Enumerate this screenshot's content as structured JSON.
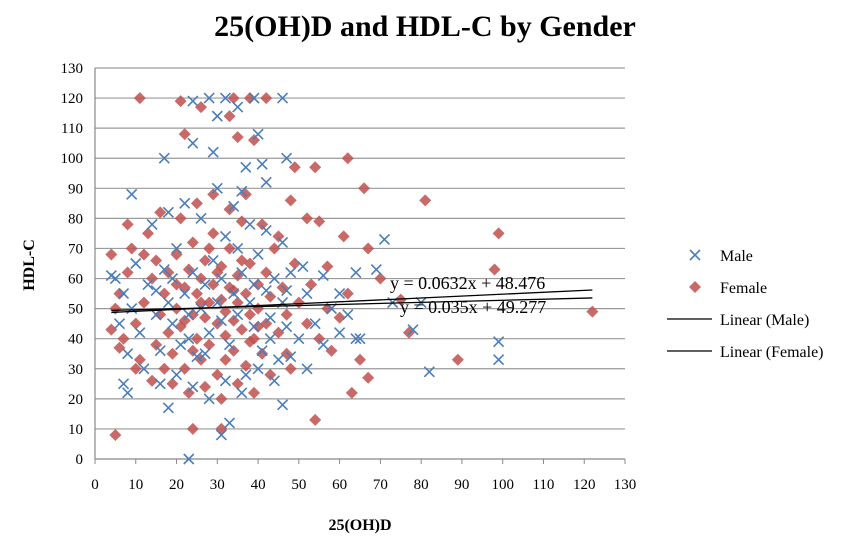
{
  "chart_data": {
    "type": "scatter",
    "title": "25(OH)D and HDL-C by Gender",
    "xlabel": "25(OH)D",
    "ylabel": "HDL-C",
    "xlim": [
      0,
      130
    ],
    "ylim": [
      0,
      130
    ],
    "xticks": [
      0,
      10,
      20,
      30,
      40,
      50,
      60,
      70,
      80,
      90,
      100,
      110,
      120,
      130
    ],
    "yticks": [
      0,
      10,
      20,
      30,
      40,
      50,
      60,
      70,
      80,
      90,
      100,
      110,
      120,
      130
    ],
    "grid": "horizontal",
    "legend_position": "right",
    "series": [
      {
        "name": "Male",
        "marker": "x",
        "color": "#4a7ebb",
        "points": [
          [
            23,
            0
          ],
          [
            24,
            119
          ],
          [
            28,
            120
          ],
          [
            30,
            114
          ],
          [
            32,
            120
          ],
          [
            35,
            117
          ],
          [
            39,
            120
          ],
          [
            46,
            120
          ],
          [
            29,
            102
          ],
          [
            24,
            105
          ],
          [
            40,
            108
          ],
          [
            17,
            100
          ],
          [
            47,
            100
          ],
          [
            41,
            98
          ],
          [
            37,
            97
          ],
          [
            9,
            88
          ],
          [
            71,
            73
          ],
          [
            82,
            29
          ],
          [
            99,
            39
          ],
          [
            99,
            33
          ],
          [
            78,
            43
          ],
          [
            73,
            52
          ],
          [
            80,
            52
          ],
          [
            56,
            61
          ],
          [
            64,
            62
          ],
          [
            4,
            61
          ],
          [
            8,
            22
          ],
          [
            18,
            17
          ],
          [
            31,
            8
          ],
          [
            33,
            12
          ],
          [
            46,
            18
          ],
          [
            52,
            30
          ],
          [
            64,
            40
          ],
          [
            60,
            55
          ],
          [
            69,
            63
          ],
          [
            36,
            89
          ],
          [
            42,
            92
          ],
          [
            9,
            50
          ],
          [
            11,
            42
          ],
          [
            13,
            58
          ],
          [
            15,
            48
          ],
          [
            16,
            36
          ],
          [
            17,
            63
          ],
          [
            18,
            52
          ],
          [
            19,
            45
          ],
          [
            20,
            70
          ],
          [
            21,
            38
          ],
          [
            22,
            55
          ],
          [
            23,
            48
          ],
          [
            24,
            62
          ],
          [
            25,
            34
          ],
          [
            26,
            50
          ],
          [
            27,
            58
          ],
          [
            28,
            42
          ],
          [
            29,
            66
          ],
          [
            30,
            52
          ],
          [
            31,
            46
          ],
          [
            32,
            74
          ],
          [
            33,
            38
          ],
          [
            34,
            55
          ],
          [
            35,
            48
          ],
          [
            36,
            62
          ],
          [
            37,
            28
          ],
          [
            38,
            52
          ],
          [
            39,
            44
          ],
          [
            40,
            68
          ],
          [
            41,
            36
          ],
          [
            42,
            56
          ],
          [
            43,
            47
          ],
          [
            44,
            60
          ],
          [
            45,
            33
          ],
          [
            46,
            52
          ],
          [
            47,
            44
          ],
          [
            48,
            62
          ],
          [
            50,
            40
          ],
          [
            52,
            55
          ],
          [
            54,
            45
          ],
          [
            56,
            38
          ],
          [
            58,
            50
          ],
          [
            60,
            42
          ],
          [
            62,
            48
          ],
          [
            65,
            40
          ],
          [
            10,
            65
          ],
          [
            12,
            30
          ],
          [
            14,
            78
          ],
          [
            16,
            25
          ],
          [
            18,
            82
          ],
          [
            20,
            28
          ],
          [
            22,
            85
          ],
          [
            24,
            24
          ],
          [
            26,
            80
          ],
          [
            28,
            20
          ],
          [
            30,
            90
          ],
          [
            32,
            26
          ],
          [
            34,
            84
          ],
          [
            36,
            22
          ],
          [
            38,
            78
          ],
          [
            40,
            30
          ],
          [
            42,
            76
          ],
          [
            44,
            26
          ],
          [
            46,
            72
          ],
          [
            48,
            34
          ],
          [
            6,
            45
          ],
          [
            7,
            55
          ],
          [
            8,
            35
          ],
          [
            5,
            60
          ],
          [
            7,
            25
          ],
          [
            15,
            56
          ],
          [
            19,
            60
          ],
          [
            23,
            40
          ],
          [
            27,
            35
          ],
          [
            31,
            60
          ],
          [
            35,
            70
          ],
          [
            39,
            58
          ],
          [
            43,
            40
          ],
          [
            47,
            56
          ],
          [
            51,
            64
          ]
        ]
      },
      {
        "name": "Female",
        "marker": "diamond",
        "color": "#c0504d",
        "points": [
          [
            11,
            120
          ],
          [
            21,
            119
          ],
          [
            26,
            117
          ],
          [
            34,
            120
          ],
          [
            38,
            120
          ],
          [
            42,
            120
          ],
          [
            33,
            114
          ],
          [
            22,
            108
          ],
          [
            39,
            106
          ],
          [
            35,
            107
          ],
          [
            62,
            100
          ],
          [
            66,
            90
          ],
          [
            81,
            86
          ],
          [
            99,
            75
          ],
          [
            98,
            63
          ],
          [
            122,
            49
          ],
          [
            89,
            33
          ],
          [
            5,
            8
          ],
          [
            54,
            13
          ],
          [
            24,
            10
          ],
          [
            31,
            10
          ],
          [
            77,
            42
          ],
          [
            75,
            53
          ],
          [
            70,
            60
          ],
          [
            61,
            74
          ],
          [
            55,
            79
          ],
          [
            52,
            80
          ],
          [
            67,
            70
          ],
          [
            63,
            22
          ],
          [
            65,
            33
          ],
          [
            67,
            27
          ],
          [
            4,
            68
          ],
          [
            4,
            43
          ],
          [
            57,
            64
          ],
          [
            54,
            97
          ],
          [
            49,
            97
          ],
          [
            48,
            86
          ],
          [
            10,
            45
          ],
          [
            12,
            52
          ],
          [
            14,
            60
          ],
          [
            15,
            38
          ],
          [
            16,
            48
          ],
          [
            17,
            55
          ],
          [
            18,
            62
          ],
          [
            18,
            42
          ],
          [
            19,
            35
          ],
          [
            20,
            50
          ],
          [
            20,
            68
          ],
          [
            21,
            44
          ],
          [
            22,
            57
          ],
          [
            22,
            30
          ],
          [
            23,
            63
          ],
          [
            24,
            48
          ],
          [
            24,
            72
          ],
          [
            25,
            40
          ],
          [
            25,
            55
          ],
          [
            26,
            60
          ],
          [
            26,
            33
          ],
          [
            27,
            47
          ],
          [
            27,
            66
          ],
          [
            28,
            52
          ],
          [
            28,
            38
          ],
          [
            29,
            58
          ],
          [
            29,
            75
          ],
          [
            30,
            45
          ],
          [
            30,
            28
          ],
          [
            31,
            53
          ],
          [
            31,
            64
          ],
          [
            32,
            41
          ],
          [
            32,
            49
          ],
          [
            33,
            57
          ],
          [
            33,
            70
          ],
          [
            34,
            36
          ],
          [
            34,
            46
          ],
          [
            35,
            61
          ],
          [
            35,
            52
          ],
          [
            36,
            43
          ],
          [
            36,
            79
          ],
          [
            37,
            55
          ],
          [
            37,
            31
          ],
          [
            38,
            48
          ],
          [
            38,
            65
          ],
          [
            39,
            40
          ],
          [
            40,
            58
          ],
          [
            40,
            50
          ],
          [
            41,
            35
          ],
          [
            42,
            62
          ],
          [
            42,
            45
          ],
          [
            43,
            54
          ],
          [
            44,
            70
          ],
          [
            45,
            42
          ],
          [
            46,
            57
          ],
          [
            47,
            48
          ],
          [
            48,
            30
          ],
          [
            49,
            65
          ],
          [
            50,
            52
          ],
          [
            52,
            45
          ],
          [
            53,
            58
          ],
          [
            55,
            40
          ],
          [
            57,
            50
          ],
          [
            58,
            36
          ],
          [
            60,
            47
          ],
          [
            62,
            55
          ],
          [
            9,
            70
          ],
          [
            8,
            78
          ],
          [
            11,
            33
          ],
          [
            13,
            75
          ],
          [
            14,
            26
          ],
          [
            16,
            82
          ],
          [
            19,
            25
          ],
          [
            21,
            80
          ],
          [
            23,
            22
          ],
          [
            25,
            85
          ],
          [
            27,
            24
          ],
          [
            29,
            88
          ],
          [
            31,
            20
          ],
          [
            33,
            83
          ],
          [
            35,
            25
          ],
          [
            37,
            88
          ],
          [
            39,
            22
          ],
          [
            41,
            78
          ],
          [
            43,
            28
          ],
          [
            45,
            74
          ],
          [
            47,
            35
          ],
          [
            15,
            66
          ],
          [
            17,
            30
          ],
          [
            20,
            58
          ],
          [
            22,
            46
          ],
          [
            24,
            36
          ],
          [
            26,
            52
          ],
          [
            28,
            70
          ],
          [
            30,
            62
          ],
          [
            32,
            33
          ],
          [
            34,
            56
          ],
          [
            36,
            66
          ],
          [
            38,
            39
          ],
          [
            40,
            44
          ],
          [
            6,
            55
          ],
          [
            7,
            40
          ],
          [
            8,
            62
          ],
          [
            10,
            30
          ],
          [
            12,
            68
          ],
          [
            5,
            50
          ],
          [
            6,
            37
          ]
        ]
      }
    ],
    "trendlines": [
      {
        "name": "Linear (Male)",
        "slope": 0.0632,
        "intercept": 48.476,
        "x_range": [
          4,
          122
        ],
        "equation": "y = 0.0632x + 48.476",
        "color": "#000000"
      },
      {
        "name": "Linear (Female)",
        "slope": 0.035,
        "intercept": 49.277,
        "x_range": [
          4,
          122
        ],
        "equation": "y = 0.035x + 49.277",
        "color": "#000000"
      }
    ]
  }
}
